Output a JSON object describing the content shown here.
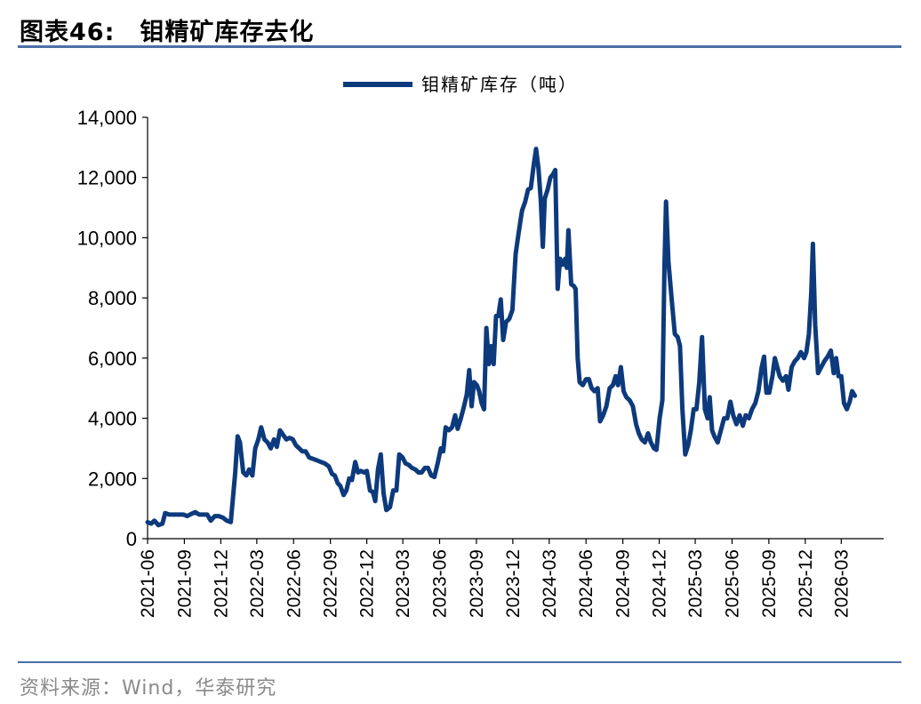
{
  "figure": {
    "title_prefix": "图表46:",
    "title": "钼精矿库存去化",
    "source": "资料来源：Wind，华泰研究"
  },
  "colors": {
    "series": "#0d3a7c",
    "rule": "#4a6fa5",
    "source_text": "#8a8a8a"
  },
  "chart_data": {
    "type": "line",
    "title": "",
    "xlabel": "",
    "ylabel": "",
    "ylim": [
      0,
      14000
    ],
    "y_ticks": [
      0,
      2000,
      4000,
      6000,
      8000,
      10000,
      12000,
      14000
    ],
    "y_tick_labels": [
      "0",
      "2,000",
      "4,000",
      "6,000",
      "8,000",
      "10,000",
      "12,000",
      "14,000"
    ],
    "x_ticks": [
      "2021-06",
      "2021-09",
      "2021-12",
      "2022-03",
      "2022-06",
      "2022-09",
      "2022-12",
      "2023-03",
      "2023-06",
      "2023-09",
      "2023-12",
      "2024-03",
      "2024-06",
      "2024-09",
      "2024-12",
      "2025-03",
      "2025-06",
      "2025-09",
      "2025-12",
      "2026-03"
    ],
    "x_range": [
      "2021-06-01",
      "2026-06-15"
    ],
    "grid": false,
    "legend_position": "top-center",
    "series": [
      {
        "name": "钼精矿库存（吨）",
        "color": "#0d3a7c",
        "points": [
          [
            "2021-06-01",
            550
          ],
          [
            "2021-06-10",
            500
          ],
          [
            "2021-06-18",
            600
          ],
          [
            "2021-06-28",
            450
          ],
          [
            "2021-07-08",
            500
          ],
          [
            "2021-07-15",
            850
          ],
          [
            "2021-07-25",
            800
          ],
          [
            "2021-08-05",
            800
          ],
          [
            "2021-08-18",
            800
          ],
          [
            "2021-08-30",
            800
          ],
          [
            "2021-09-08",
            750
          ],
          [
            "2021-09-18",
            820
          ],
          [
            "2021-09-28",
            880
          ],
          [
            "2021-10-08",
            800
          ],
          [
            "2021-10-18",
            800
          ],
          [
            "2021-10-28",
            800
          ],
          [
            "2021-11-06",
            600
          ],
          [
            "2021-11-16",
            750
          ],
          [
            "2021-11-26",
            750
          ],
          [
            "2021-12-06",
            700
          ],
          [
            "2021-12-16",
            600
          ],
          [
            "2021-12-26",
            550
          ],
          [
            "2022-01-06",
            2200
          ],
          [
            "2022-01-12",
            3400
          ],
          [
            "2022-01-18",
            3200
          ],
          [
            "2022-01-26",
            2200
          ],
          [
            "2022-02-03",
            2100
          ],
          [
            "2022-02-10",
            2300
          ],
          [
            "2022-02-18",
            2100
          ],
          [
            "2022-02-25",
            3000
          ],
          [
            "2022-03-05",
            3300
          ],
          [
            "2022-03-12",
            3700
          ],
          [
            "2022-03-20",
            3300
          ],
          [
            "2022-03-28",
            3200
          ],
          [
            "2022-04-05",
            3000
          ],
          [
            "2022-04-13",
            3300
          ],
          [
            "2022-04-20",
            3050
          ],
          [
            "2022-04-28",
            3600
          ],
          [
            "2022-05-06",
            3450
          ],
          [
            "2022-05-14",
            3300
          ],
          [
            "2022-05-22",
            3350
          ],
          [
            "2022-05-30",
            3300
          ],
          [
            "2022-06-07",
            3100
          ],
          [
            "2022-06-15",
            3000
          ],
          [
            "2022-06-23",
            2900
          ],
          [
            "2022-07-01",
            2900
          ],
          [
            "2022-07-10",
            2700
          ],
          [
            "2022-07-20",
            2650
          ],
          [
            "2022-07-30",
            2600
          ],
          [
            "2022-08-08",
            2550
          ],
          [
            "2022-08-18",
            2500
          ],
          [
            "2022-08-28",
            2400
          ],
          [
            "2022-09-05",
            2150
          ],
          [
            "2022-09-12",
            2100
          ],
          [
            "2022-09-19",
            1850
          ],
          [
            "2022-09-26",
            1750
          ],
          [
            "2022-10-04",
            1450
          ],
          [
            "2022-10-11",
            1600
          ],
          [
            "2022-10-18",
            2000
          ],
          [
            "2022-10-25",
            1950
          ],
          [
            "2022-11-02",
            2550
          ],
          [
            "2022-11-09",
            2200
          ],
          [
            "2022-11-16",
            2250
          ],
          [
            "2022-11-24",
            2200
          ],
          [
            "2022-12-01",
            2250
          ],
          [
            "2022-12-09",
            1600
          ],
          [
            "2022-12-16",
            1550
          ],
          [
            "2022-12-22",
            1250
          ],
          [
            "2022-12-29",
            2300
          ],
          [
            "2023-01-05",
            2800
          ],
          [
            "2023-01-12",
            1500
          ],
          [
            "2023-01-19",
            950
          ],
          [
            "2023-01-28",
            1050
          ],
          [
            "2023-02-05",
            1600
          ],
          [
            "2023-02-13",
            1600
          ],
          [
            "2023-02-20",
            2800
          ],
          [
            "2023-02-28",
            2700
          ],
          [
            "2023-03-08",
            2500
          ],
          [
            "2023-03-16",
            2450
          ],
          [
            "2023-03-24",
            2350
          ],
          [
            "2023-04-01",
            2300
          ],
          [
            "2023-04-09",
            2200
          ],
          [
            "2023-04-17",
            2200
          ],
          [
            "2023-04-25",
            2350
          ],
          [
            "2023-05-03",
            2350
          ],
          [
            "2023-05-11",
            2100
          ],
          [
            "2023-05-19",
            2050
          ],
          [
            "2023-05-27",
            2500
          ],
          [
            "2023-06-04",
            3000
          ],
          [
            "2023-06-10",
            2900
          ],
          [
            "2023-06-16",
            3700
          ],
          [
            "2023-06-24",
            3600
          ],
          [
            "2023-07-02",
            3700
          ],
          [
            "2023-07-10",
            4100
          ],
          [
            "2023-07-16",
            3650
          ],
          [
            "2023-07-24",
            4000
          ],
          [
            "2023-08-01",
            4400
          ],
          [
            "2023-08-08",
            4800
          ],
          [
            "2023-08-14",
            5600
          ],
          [
            "2023-08-20",
            4400
          ],
          [
            "2023-08-26",
            5200
          ],
          [
            "2023-09-02",
            5100
          ],
          [
            "2023-09-08",
            4900
          ],
          [
            "2023-09-14",
            4500
          ],
          [
            "2023-09-20",
            4300
          ],
          [
            "2023-09-26",
            7000
          ],
          [
            "2023-10-02",
            5800
          ],
          [
            "2023-10-08",
            6400
          ],
          [
            "2023-10-14",
            5800
          ],
          [
            "2023-10-20",
            7400
          ],
          [
            "2023-10-26",
            7400
          ],
          [
            "2023-11-01",
            7950
          ],
          [
            "2023-11-07",
            6600
          ],
          [
            "2023-11-14",
            7200
          ],
          [
            "2023-11-22",
            7300
          ],
          [
            "2023-11-30",
            7600
          ],
          [
            "2023-12-08",
            9450
          ],
          [
            "2023-12-16",
            10200
          ],
          [
            "2023-12-24",
            10900
          ],
          [
            "2024-01-01",
            11200
          ],
          [
            "2024-01-08",
            11600
          ],
          [
            "2024-01-15",
            11650
          ],
          [
            "2024-01-22",
            12400
          ],
          [
            "2024-01-28",
            12950
          ],
          [
            "2024-02-03",
            12300
          ],
          [
            "2024-02-09",
            11200
          ],
          [
            "2024-02-14",
            9700
          ],
          [
            "2024-02-19",
            11300
          ],
          [
            "2024-02-26",
            11600
          ],
          [
            "2024-03-04",
            12000
          ],
          [
            "2024-03-10",
            12100
          ],
          [
            "2024-03-16",
            12250
          ],
          [
            "2024-03-22",
            8300
          ],
          [
            "2024-03-28",
            9300
          ],
          [
            "2024-04-04",
            9100
          ],
          [
            "2024-04-10",
            9300
          ],
          [
            "2024-04-14",
            9000
          ],
          [
            "2024-04-18",
            10250
          ],
          [
            "2024-04-25",
            8450
          ],
          [
            "2024-05-01",
            8400
          ],
          [
            "2024-05-06",
            8300
          ],
          [
            "2024-05-11",
            6000
          ],
          [
            "2024-05-16",
            5200
          ],
          [
            "2024-05-24",
            5100
          ],
          [
            "2024-06-01",
            5300
          ],
          [
            "2024-06-08",
            5300
          ],
          [
            "2024-06-15",
            5000
          ],
          [
            "2024-06-22",
            4900
          ],
          [
            "2024-06-30",
            5000
          ],
          [
            "2024-07-06",
            3900
          ],
          [
            "2024-07-14",
            4100
          ],
          [
            "2024-07-22",
            4400
          ],
          [
            "2024-07-30",
            5000
          ],
          [
            "2024-08-07",
            5100
          ],
          [
            "2024-08-14",
            5400
          ],
          [
            "2024-08-20",
            5100
          ],
          [
            "2024-08-27",
            5700
          ],
          [
            "2024-09-03",
            4900
          ],
          [
            "2024-09-10",
            4700
          ],
          [
            "2024-09-18",
            4600
          ],
          [
            "2024-09-26",
            4400
          ],
          [
            "2024-10-04",
            3800
          ],
          [
            "2024-10-11",
            3500
          ],
          [
            "2024-10-18",
            3300
          ],
          [
            "2024-10-26",
            3200
          ],
          [
            "2024-11-03",
            3500
          ],
          [
            "2024-11-10",
            3200
          ],
          [
            "2024-11-18",
            3000
          ],
          [
            "2024-11-24",
            2950
          ],
          [
            "2024-12-02",
            4000
          ],
          [
            "2024-12-09",
            4600
          ],
          [
            "2024-12-14",
            9000
          ],
          [
            "2024-12-18",
            11200
          ],
          [
            "2024-12-24",
            9200
          ],
          [
            "2025-01-02",
            7800
          ],
          [
            "2025-01-09",
            6800
          ],
          [
            "2025-01-16",
            6700
          ],
          [
            "2025-01-22",
            6400
          ],
          [
            "2025-01-28",
            4300
          ],
          [
            "2025-02-04",
            2800
          ],
          [
            "2025-02-11",
            3100
          ],
          [
            "2025-02-18",
            3600
          ],
          [
            "2025-02-25",
            4300
          ],
          [
            "2025-03-04",
            4300
          ],
          [
            "2025-03-11",
            5200
          ],
          [
            "2025-03-18",
            6700
          ],
          [
            "2025-03-25",
            4300
          ],
          [
            "2025-04-01",
            4000
          ],
          [
            "2025-04-06",
            4700
          ],
          [
            "2025-04-12",
            3600
          ],
          [
            "2025-04-18",
            3400
          ],
          [
            "2025-04-26",
            3200
          ],
          [
            "2025-05-04",
            3600
          ],
          [
            "2025-05-12",
            4000
          ],
          [
            "2025-05-20",
            4000
          ],
          [
            "2025-05-28",
            4550
          ],
          [
            "2025-06-04",
            4100
          ],
          [
            "2025-06-12",
            3800
          ],
          [
            "2025-06-20",
            4100
          ],
          [
            "2025-06-28",
            3750
          ],
          [
            "2025-07-05",
            4100
          ],
          [
            "2025-07-13",
            4000
          ],
          [
            "2025-07-21",
            4300
          ],
          [
            "2025-07-29",
            4500
          ],
          [
            "2025-08-06",
            4900
          ],
          [
            "2025-08-14",
            5700
          ],
          [
            "2025-08-20",
            6050
          ],
          [
            "2025-08-26",
            4850
          ],
          [
            "2025-09-02",
            4850
          ],
          [
            "2025-09-10",
            5400
          ],
          [
            "2025-09-16",
            6000
          ],
          [
            "2025-09-22",
            5700
          ],
          [
            "2025-09-28",
            5400
          ],
          [
            "2025-10-06",
            5250
          ],
          [
            "2025-10-14",
            5400
          ],
          [
            "2025-10-20",
            4950
          ],
          [
            "2025-10-28",
            5700
          ],
          [
            "2025-11-05",
            5900
          ],
          [
            "2025-11-12",
            6000
          ],
          [
            "2025-11-20",
            6200
          ],
          [
            "2025-11-28",
            6000
          ],
          [
            "2025-12-04",
            6200
          ],
          [
            "2025-12-10",
            6800
          ],
          [
            "2025-12-16",
            8200
          ],
          [
            "2025-12-20",
            9800
          ],
          [
            "2025-12-26",
            7100
          ],
          [
            "2026-01-02",
            5500
          ],
          [
            "2026-01-10",
            5700
          ],
          [
            "2026-01-18",
            5900
          ],
          [
            "2026-01-26",
            6050
          ],
          [
            "2026-02-03",
            6250
          ],
          [
            "2026-02-10",
            5500
          ],
          [
            "2026-02-16",
            6000
          ],
          [
            "2026-02-22",
            5400
          ],
          [
            "2026-03-01",
            5400
          ],
          [
            "2026-03-08",
            4500
          ],
          [
            "2026-03-15",
            4300
          ],
          [
            "2026-03-22",
            4550
          ],
          [
            "2026-03-28",
            4900
          ],
          [
            "2026-04-04",
            4750
          ]
        ]
      }
    ]
  }
}
